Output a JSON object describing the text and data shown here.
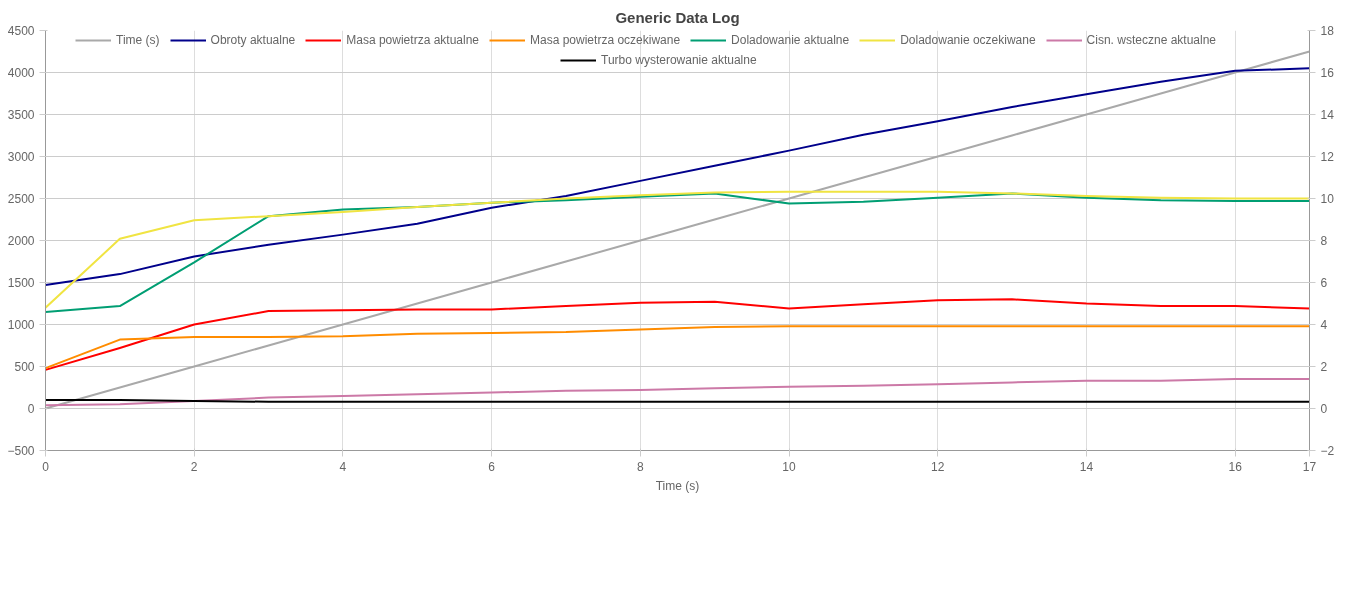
{
  "chart_data": {
    "type": "line",
    "title": "Generic Data Log",
    "xlabel": "Time (s)",
    "x": [
      0,
      1,
      2,
      3,
      4,
      5,
      6,
      7,
      8,
      9,
      10,
      11,
      12,
      13,
      14,
      15,
      16,
      17
    ],
    "series": [
      {
        "name": "Time (s)",
        "color": "#a9a9a9",
        "axis": "y2",
        "values": [
          0,
          1,
          2,
          3,
          4,
          5,
          6,
          7,
          8,
          9,
          10,
          11,
          12,
          13,
          14,
          15,
          16,
          17
        ]
      },
      {
        "name": "Obroty aktualne",
        "color": "#00008b",
        "values": [
          1470,
          1600,
          1810,
          1950,
          2070,
          2200,
          2390,
          2530,
          2710,
          2890,
          3070,
          3260,
          3420,
          3590,
          3740,
          3890,
          4020,
          4050
        ]
      },
      {
        "name": "Masa powietrza aktualne",
        "color": "#ff0000",
        "values": [
          460,
          720,
          1000,
          1160,
          1170,
          1180,
          1180,
          1220,
          1260,
          1270,
          1190,
          1240,
          1290,
          1300,
          1250,
          1220,
          1220,
          1190
        ]
      },
      {
        "name": "Masa powietrza oczekiwane",
        "color": "#ff8c00",
        "values": [
          480,
          820,
          850,
          850,
          860,
          890,
          900,
          910,
          940,
          970,
          980,
          980,
          980,
          980,
          980,
          980,
          980,
          980
        ]
      },
      {
        "name": "Doladowanie aktualne",
        "color": "#009e73",
        "values": [
          1150,
          1220,
          1740,
          2290,
          2370,
          2400,
          2450,
          2480,
          2520,
          2560,
          2440,
          2460,
          2510,
          2560,
          2510,
          2480,
          2470,
          2470
        ]
      },
      {
        "name": "Doladowanie oczekiwane",
        "color": "#f0e442",
        "values": [
          1200,
          2020,
          2240,
          2290,
          2340,
          2400,
          2450,
          2500,
          2540,
          2570,
          2580,
          2580,
          2580,
          2560,
          2530,
          2510,
          2500,
          2500
        ]
      },
      {
        "name": "Cisn. wsteczne aktualne",
        "color": "#cc79a7",
        "values": [
          40,
          50,
          90,
          130,
          150,
          170,
          190,
          210,
          220,
          240,
          260,
          270,
          290,
          310,
          330,
          330,
          350,
          350
        ]
      },
      {
        "name": "Turbo wysterowanie aktualne",
        "color": "#000000",
        "values": [
          100,
          100,
          90,
          80,
          80,
          80,
          80,
          80,
          80,
          80,
          80,
          80,
          80,
          80,
          80,
          80,
          80,
          80
        ]
      }
    ],
    "xlim": [
      0,
      17
    ],
    "xticks": [
      0,
      2,
      4,
      6,
      8,
      10,
      12,
      14,
      16,
      17
    ],
    "ylim": [
      -500,
      4500
    ],
    "yticks": [
      -500,
      0,
      500,
      1000,
      1500,
      2000,
      2500,
      3000,
      3500,
      4000,
      4500
    ],
    "y2lim": [
      -2,
      18
    ],
    "y2ticks": [
      -2,
      0,
      2,
      4,
      6,
      8,
      10,
      12,
      14,
      16,
      18
    ],
    "grid": true,
    "legend": "top",
    "marker": "none",
    "line_style": "solid"
  }
}
